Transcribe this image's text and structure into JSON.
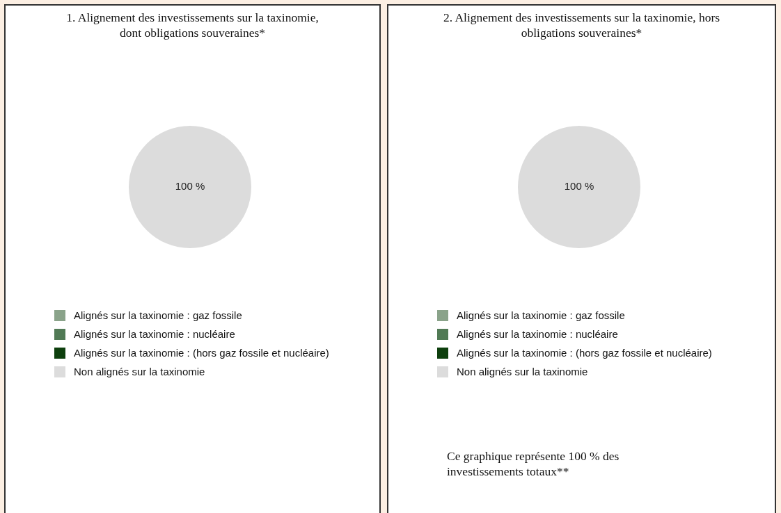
{
  "chart_data": [
    {
      "type": "pie",
      "title": "1. Alignement des investissements sur la taxinomie, dont obligations souveraines*",
      "categories": [
        "Alignés sur la taxinomie : gaz fossile",
        "Alignés sur la taxinomie : nucléaire",
        "Alignés sur la taxinomie : (hors gaz fossile et nucléaire)",
        "Non alignés sur la taxinomie"
      ],
      "values": [
        0,
        0,
        0,
        100
      ],
      "colors": [
        "#8aa38a",
        "#517a55",
        "#0d3f0d",
        "#dcdcdc"
      ],
      "value_labels": [
        null,
        null,
        null,
        "100 %"
      ],
      "legend": "bottom"
    },
    {
      "type": "pie",
      "title": "2. Alignement des investissements sur la taxinomie, hors obligations souveraines*",
      "categories": [
        "Alignés sur la taxinomie : gaz fossile",
        "Alignés sur la taxinomie : nucléaire",
        "Alignés sur la taxinomie : (hors gaz fossile et nucléaire)",
        "Non alignés sur la taxinomie"
      ],
      "values": [
        0,
        0,
        0,
        100
      ],
      "colors": [
        "#8aa38a",
        "#517a55",
        "#0d3f0d",
        "#dcdcdc"
      ],
      "value_labels": [
        null,
        null,
        null,
        "100 %"
      ],
      "legend": "bottom",
      "annotations": [
        "Ce graphique représente 100 % des investissements totaux**"
      ]
    }
  ]
}
